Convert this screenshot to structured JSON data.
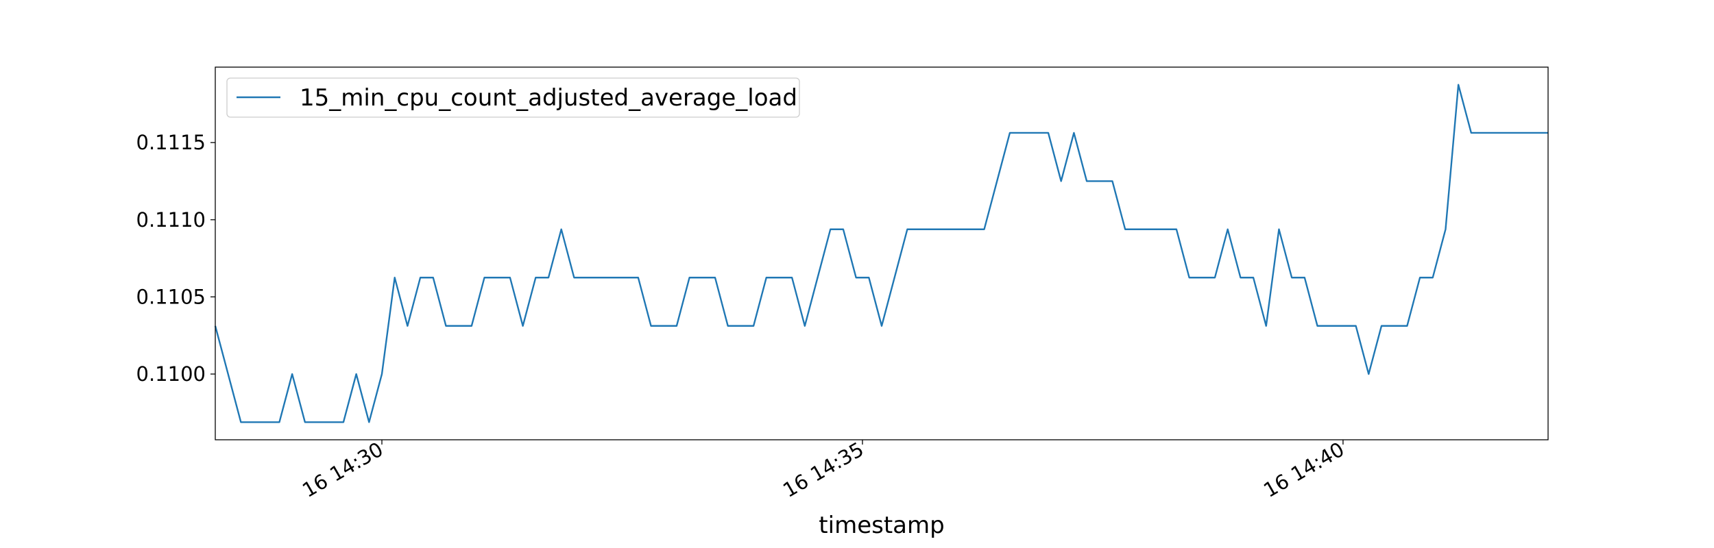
{
  "chart_data": {
    "type": "line",
    "x_label": "timestamp",
    "x": [
      "16 14:28:16",
      "16 14:28:32",
      "16 14:28:56",
      "16 14:29:04",
      "16 14:29:12",
      "16 14:29:36",
      "16 14:29:44",
      "16 14:29:52",
      "16 14:30:00",
      "16 14:30:08",
      "16 14:30:16",
      "16 14:30:24",
      "16 14:30:32",
      "16 14:30:40",
      "16 14:30:56",
      "16 14:31:04",
      "16 14:31:20",
      "16 14:31:28",
      "16 14:31:36",
      "16 14:31:44",
      "16 14:31:52",
      "16 14:32:00",
      "16 14:32:40",
      "16 14:32:48",
      "16 14:33:04",
      "16 14:33:12",
      "16 14:33:28",
      "16 14:33:36",
      "16 14:33:52",
      "16 14:34:00",
      "16 14:34:16",
      "16 14:34:24",
      "16 14:34:40",
      "16 14:34:48",
      "16 14:34:56",
      "16 14:35:04",
      "16 14:35:12",
      "16 14:35:28",
      "16 14:36:16",
      "16 14:36:32",
      "16 14:36:56",
      "16 14:37:04",
      "16 14:37:12",
      "16 14:37:20",
      "16 14:37:36",
      "16 14:37:44",
      "16 14:38:16",
      "16 14:38:24",
      "16 14:38:40",
      "16 14:38:48",
      "16 14:38:56",
      "16 14:39:04",
      "16 14:39:12",
      "16 14:39:20",
      "16 14:39:28",
      "16 14:39:36",
      "16 14:39:44",
      "16 14:40:08",
      "16 14:40:16",
      "16 14:40:24",
      "16 14:40:40",
      "16 14:40:48",
      "16 14:40:56",
      "16 14:41:04",
      "16 14:41:12",
      "16 14:41:20",
      "16 14:42:08"
    ],
    "series": [
      {
        "name": "15_min_cpu_count_adjusted_average_load",
        "color": "#1f77b4",
        "values": [
          0.110312,
          0.109688,
          0.109688,
          0.11,
          0.109688,
          0.109688,
          0.11,
          0.109688,
          0.11,
          0.110625,
          0.110312,
          0.110625,
          0.110625,
          0.110312,
          0.110312,
          0.110625,
          0.110625,
          0.110312,
          0.110625,
          0.110625,
          0.110938,
          0.110625,
          0.110625,
          0.110312,
          0.110312,
          0.110625,
          0.110625,
          0.110312,
          0.110312,
          0.110625,
          0.110625,
          0.110312,
          0.110938,
          0.110938,
          0.110625,
          0.110625,
          0.110312,
          0.110938,
          0.110938,
          0.111563,
          0.111563,
          0.11125,
          0.111563,
          0.11125,
          0.11125,
          0.110938,
          0.110938,
          0.110625,
          0.110625,
          0.110938,
          0.110625,
          0.110625,
          0.110312,
          0.110938,
          0.110625,
          0.110625,
          0.110312,
          0.110312,
          0.11,
          0.110312,
          0.110312,
          0.110625,
          0.110625,
          0.110938,
          0.111875,
          0.111563,
          0.111563
        ]
      }
    ],
    "xlim": [
      "16 14:28:16",
      "16 14:42:08"
    ],
    "xticks": [
      "16 14:30",
      "16 14:35",
      "16 14:40"
    ],
    "ylim": [
      0.109574,
      0.111989
    ],
    "yticks": [
      {
        "value": 0.11,
        "label": "0.1100"
      },
      {
        "value": 0.1105,
        "label": "0.1105"
      },
      {
        "value": 0.111,
        "label": "0.1110"
      },
      {
        "value": 0.1115,
        "label": "0.1115"
      }
    ],
    "legend": "upper left",
    "grid": false
  }
}
